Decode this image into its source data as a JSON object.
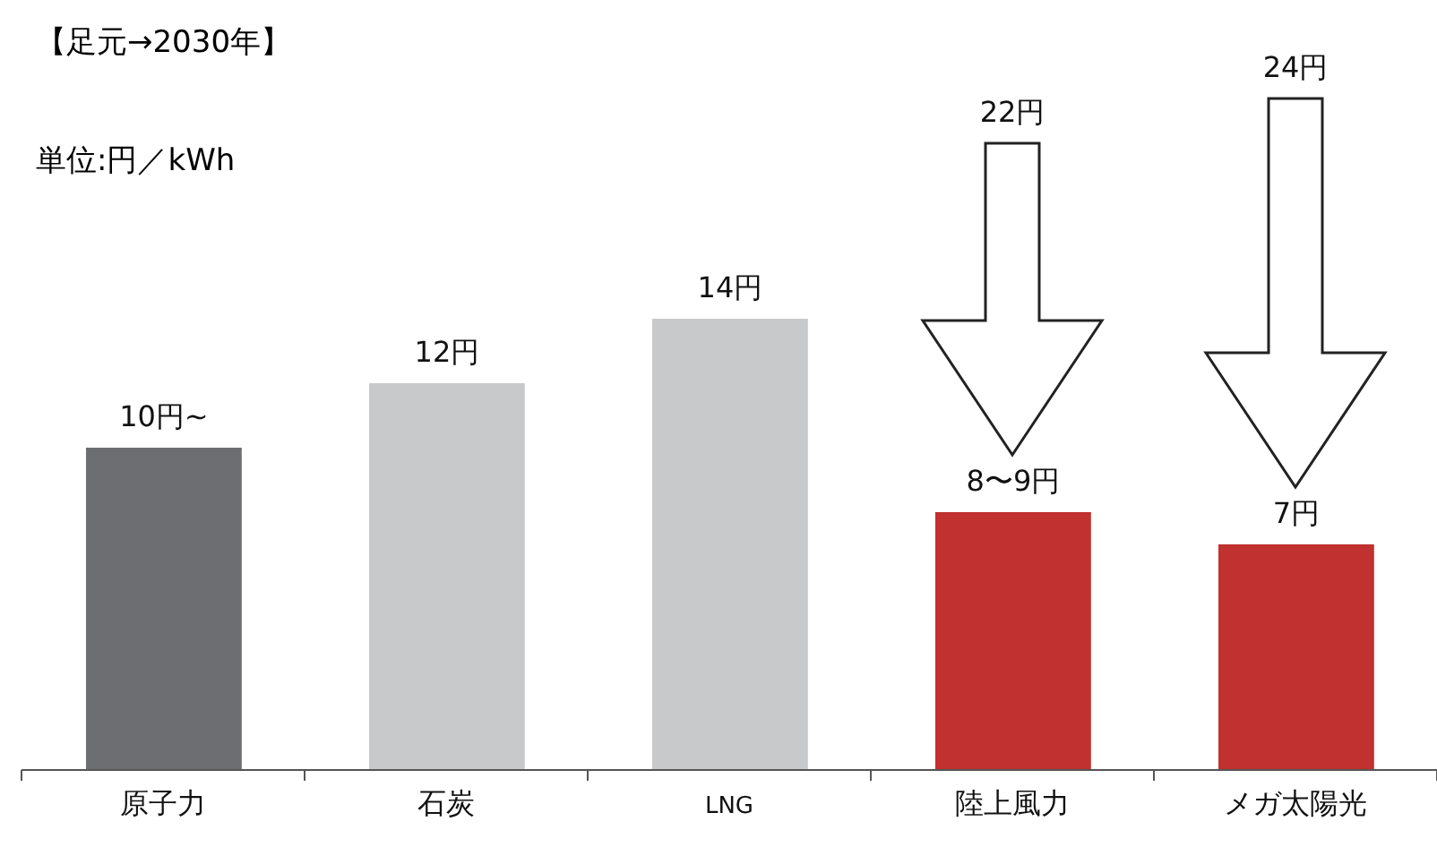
{
  "chart_data": {
    "type": "bar",
    "title": "【足元→2030年】",
    "subtitle": "単位:円／kWh",
    "categories": [
      "原子力",
      "石炭",
      "LNG",
      "陸上風力",
      "メガ太陽光"
    ],
    "values": [
      10,
      12,
      14,
      8,
      7
    ],
    "value_labels": [
      "10円~",
      "12円",
      "14円",
      "8〜9円",
      "7円"
    ],
    "colors": [
      "#6d6e71",
      "#c8c9cb",
      "#c8c9cb",
      "#c0312f",
      "#c0312f"
    ],
    "annotations": [
      "22円",
      "24円"
    ]
  }
}
